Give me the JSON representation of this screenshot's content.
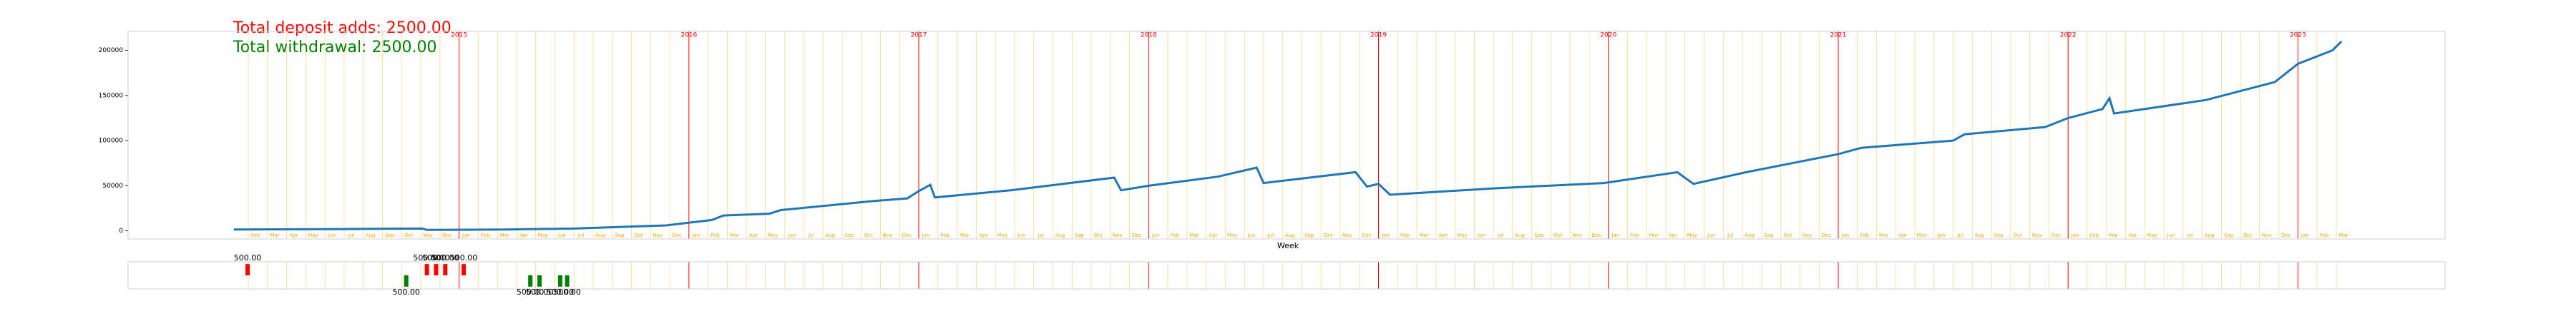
{
  "chart_data": [
    {
      "type": "line",
      "xlabel": "Week",
      "annotations": [
        {
          "text": "Total deposit adds: 2500.00",
          "color": "#ff0000"
        },
        {
          "text": "Total withdrawal: 2500.00",
          "color": "#008000"
        }
      ],
      "xlim": [
        2013.56,
        2023.64
      ],
      "ylim": [
        -9000,
        221000
      ],
      "yticks": [
        0,
        50000,
        100000,
        150000,
        200000
      ],
      "xticks": [
        2015,
        2016,
        2017,
        2018,
        2019,
        2020,
        2021,
        2022,
        2023
      ],
      "xtick_color": "#ff0000",
      "minor_xticks": [
        {
          "value": 2014.083,
          "label": "Feb"
        },
        {
          "value": 2014.167,
          "label": "Mar"
        },
        {
          "value": 2014.25,
          "label": "Apr"
        },
        {
          "value": 2014.333,
          "label": "May"
        },
        {
          "value": 2014.417,
          "label": "Jun"
        },
        {
          "value": 2014.5,
          "label": "Jul"
        },
        {
          "value": 2014.583,
          "label": "Aug"
        },
        {
          "value": 2014.667,
          "label": "Sep"
        },
        {
          "value": 2014.75,
          "label": "Oct"
        },
        {
          "value": 2014.833,
          "label": "Nov"
        },
        {
          "value": 2014.917,
          "label": "Dec"
        },
        {
          "value": 2015.0,
          "label": "Jan"
        },
        {
          "value": 2015.083,
          "label": "Feb"
        },
        {
          "value": 2015.167,
          "label": "Mar"
        },
        {
          "value": 2015.25,
          "label": "Apr"
        },
        {
          "value": 2015.333,
          "label": "May"
        },
        {
          "value": 2015.417,
          "label": "Jun"
        },
        {
          "value": 2015.5,
          "label": "Jul"
        },
        {
          "value": 2015.583,
          "label": "Aug"
        },
        {
          "value": 2015.667,
          "label": "Sep"
        },
        {
          "value": 2015.75,
          "label": "Oct"
        },
        {
          "value": 2015.833,
          "label": "Nov"
        },
        {
          "value": 2015.917,
          "label": "Dec"
        },
        {
          "value": 2016.0,
          "label": "Jan"
        },
        {
          "value": 2016.083,
          "label": "Feb"
        },
        {
          "value": 2016.167,
          "label": "Mar"
        },
        {
          "value": 2016.25,
          "label": "Apr"
        },
        {
          "value": 2016.333,
          "label": "May"
        },
        {
          "value": 2016.417,
          "label": "Jun"
        },
        {
          "value": 2016.5,
          "label": "Jul"
        },
        {
          "value": 2016.583,
          "label": "Aug"
        },
        {
          "value": 2016.667,
          "label": "Sep"
        },
        {
          "value": 2016.75,
          "label": "Oct"
        },
        {
          "value": 2016.833,
          "label": "Nov"
        },
        {
          "value": 2016.917,
          "label": "Dec"
        },
        {
          "value": 2017.0,
          "label": "Jan"
        },
        {
          "value": 2017.083,
          "label": "Feb"
        },
        {
          "value": 2017.167,
          "label": "Mar"
        },
        {
          "value": 2017.25,
          "label": "Apr"
        },
        {
          "value": 2017.333,
          "label": "May"
        },
        {
          "value": 2017.417,
          "label": "Jun"
        },
        {
          "value": 2017.5,
          "label": "Jul"
        },
        {
          "value": 2017.583,
          "label": "Aug"
        },
        {
          "value": 2017.667,
          "label": "Sep"
        },
        {
          "value": 2017.75,
          "label": "Oct"
        },
        {
          "value": 2017.833,
          "label": "Nov"
        },
        {
          "value": 2017.917,
          "label": "Dec"
        },
        {
          "value": 2018.0,
          "label": "Jan"
        },
        {
          "value": 2018.083,
          "label": "Feb"
        },
        {
          "value": 2018.167,
          "label": "Mar"
        },
        {
          "value": 2018.25,
          "label": "Apr"
        },
        {
          "value": 2018.333,
          "label": "May"
        },
        {
          "value": 2018.417,
          "label": "Jun"
        },
        {
          "value": 2018.5,
          "label": "Jul"
        },
        {
          "value": 2018.583,
          "label": "Aug"
        },
        {
          "value": 2018.667,
          "label": "Sep"
        },
        {
          "value": 2018.75,
          "label": "Oct"
        },
        {
          "value": 2018.833,
          "label": "Nov"
        },
        {
          "value": 2018.917,
          "label": "Dec"
        },
        {
          "value": 2019.0,
          "label": "Jan"
        },
        {
          "value": 2019.083,
          "label": "Feb"
        },
        {
          "value": 2019.167,
          "label": "Mar"
        },
        {
          "value": 2019.25,
          "label": "Apr"
        },
        {
          "value": 2019.333,
          "label": "May"
        },
        {
          "value": 2019.417,
          "label": "Jun"
        },
        {
          "value": 2019.5,
          "label": "Jul"
        },
        {
          "value": 2019.583,
          "label": "Aug"
        },
        {
          "value": 2019.667,
          "label": "Sep"
        },
        {
          "value": 2019.75,
          "label": "Oct"
        },
        {
          "value": 2019.833,
          "label": "Nov"
        },
        {
          "value": 2019.917,
          "label": "Dec"
        },
        {
          "value": 2020.0,
          "label": "Jan"
        },
        {
          "value": 2020.083,
          "label": "Feb"
        },
        {
          "value": 2020.167,
          "label": "Mar"
        },
        {
          "value": 2020.25,
          "label": "Apr"
        },
        {
          "value": 2020.333,
          "label": "May"
        },
        {
          "value": 2020.417,
          "label": "Jun"
        },
        {
          "value": 2020.5,
          "label": "Jul"
        },
        {
          "value": 2020.583,
          "label": "Aug"
        },
        {
          "value": 2020.667,
          "label": "Sep"
        },
        {
          "value": 2020.75,
          "label": "Oct"
        },
        {
          "value": 2020.833,
          "label": "Nov"
        },
        {
          "value": 2020.917,
          "label": "Dec"
        },
        {
          "value": 2021.0,
          "label": "Jan"
        },
        {
          "value": 2021.083,
          "label": "Feb"
        },
        {
          "value": 2021.167,
          "label": "Mar"
        },
        {
          "value": 2021.25,
          "label": "Apr"
        },
        {
          "value": 2021.333,
          "label": "May"
        },
        {
          "value": 2021.417,
          "label": "Jun"
        },
        {
          "value": 2021.5,
          "label": "Jul"
        },
        {
          "value": 2021.583,
          "label": "Aug"
        },
        {
          "value": 2021.667,
          "label": "Sep"
        },
        {
          "value": 2021.75,
          "label": "Oct"
        },
        {
          "value": 2021.833,
          "label": "Nov"
        },
        {
          "value": 2021.917,
          "label": "Dec"
        },
        {
          "value": 2022.0,
          "label": "Jan"
        },
        {
          "value": 2022.083,
          "label": "Feb"
        },
        {
          "value": 2022.167,
          "label": "Mar"
        },
        {
          "value": 2022.25,
          "label": "Apr"
        },
        {
          "value": 2022.333,
          "label": "May"
        },
        {
          "value": 2022.417,
          "label": "Jun"
        },
        {
          "value": 2022.5,
          "label": "Jul"
        },
        {
          "value": 2022.583,
          "label": "Aug"
        },
        {
          "value": 2022.667,
          "label": "Sep"
        },
        {
          "value": 2022.75,
          "label": "Oct"
        },
        {
          "value": 2022.833,
          "label": "Nov"
        },
        {
          "value": 2022.917,
          "label": "Dec"
        },
        {
          "value": 2023.0,
          "label": "Jan"
        },
        {
          "value": 2023.083,
          "label": "Feb"
        },
        {
          "value": 2023.167,
          "label": "Mar"
        }
      ],
      "minor_color": "#ffa500",
      "series": [
        {
          "color": "#1f77b4",
          "x": [
            2014.02,
            2014.5,
            2014.84,
            2014.86,
            2015.2,
            2015.5,
            2015.9,
            2016.1,
            2016.15,
            2016.35,
            2016.4,
            2016.6,
            2016.8,
            2016.95,
            2017.0,
            2017.05,
            2017.07,
            2017.4,
            2017.85,
            2017.88,
            2018.0,
            2018.3,
            2018.47,
            2018.5,
            2018.9,
            2018.95,
            2019.0,
            2019.05,
            2019.5,
            2019.98,
            2020.3,
            2020.37,
            2020.6,
            2020.8,
            2021.0,
            2021.1,
            2021.5,
            2021.55,
            2021.9,
            2022.0,
            2022.15,
            2022.18,
            2022.2,
            2022.6,
            2022.9,
            2023.0,
            2023.15,
            2023.19
          ],
          "values": [
            1500,
            2000,
            2500,
            1000,
            1500,
            2500,
            6000,
            12000,
            17000,
            19000,
            23000,
            28000,
            33000,
            36000,
            44000,
            51000,
            37000,
            45000,
            59000,
            45000,
            50000,
            60000,
            70000,
            53000,
            65000,
            49000,
            52000,
            40000,
            47000,
            53000,
            65000,
            52000,
            65000,
            75000,
            85000,
            92000,
            100000,
            107000,
            115000,
            125000,
            135000,
            147000,
            130000,
            145000,
            165000,
            185000,
            200000,
            210000
          ]
        }
      ]
    },
    {
      "type": "bar",
      "xlim": [
        2013.56,
        2023.64
      ],
      "ylim": [
        -600,
        600
      ],
      "series": [
        {
          "color": "#ff0000",
          "x": [
            2014.08,
            2014.86,
            2014.9,
            2014.94,
            2015.02
          ],
          "values": [
            500,
            500,
            500,
            500,
            500
          ],
          "value_labels": [
            "500.00",
            "500.00",
            "500.00",
            "500.00",
            "500.00"
          ]
        },
        {
          "color": "#008000",
          "x": [
            2014.77,
            2015.31,
            2015.35,
            2015.44,
            2015.47
          ],
          "values": [
            -500,
            -500,
            -500,
            -500,
            -500
          ],
          "value_labels": [
            "500.00",
            "500.00",
            "500.00",
            "500.00",
            "500.00"
          ]
        }
      ]
    }
  ]
}
